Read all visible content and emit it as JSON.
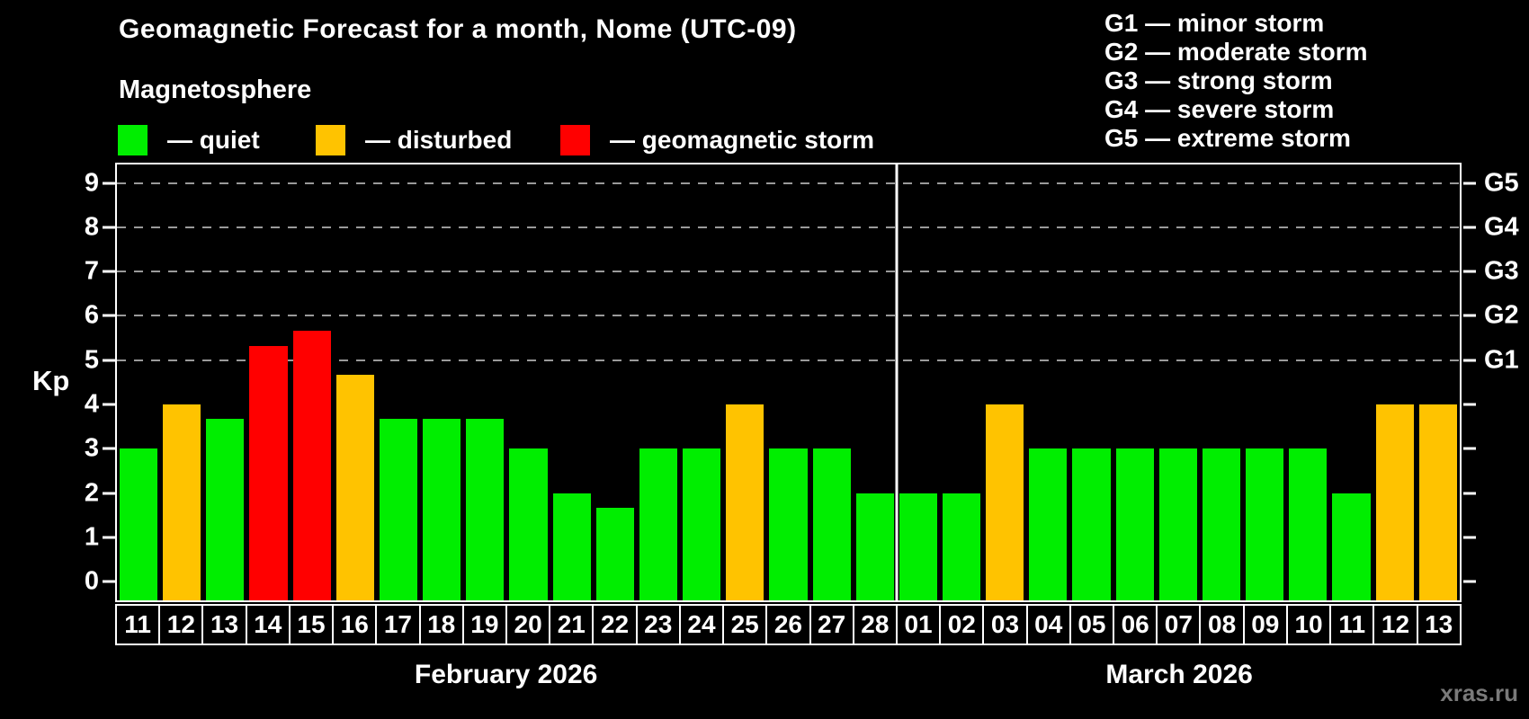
{
  "header": {
    "title": "Geomagnetic Forecast for a month, Nome (UTC-09)",
    "subtitle": "Magnetosphere"
  },
  "legend": {
    "items": [
      {
        "label": "— quiet",
        "status": "quiet"
      },
      {
        "label": "— disturbed",
        "status": "disturbed"
      },
      {
        "label": "— geomagnetic storm",
        "status": "storm"
      }
    ]
  },
  "g_scale_legend": [
    "G1 — minor storm",
    "G2 — moderate storm",
    "G3 — strong storm",
    "G4 — severe storm",
    "G5 — extreme storm"
  ],
  "watermark": "xras.ru",
  "chart_data": {
    "type": "bar",
    "title": "Geomagnetic Forecast for a month, Nome (UTC-09)",
    "ylabel": "Kp",
    "ylim": [
      0,
      9
    ],
    "plot_range": {
      "min": -0.425,
      "max": 9.42
    },
    "yticks": [
      0,
      1,
      2,
      3,
      4,
      5,
      6,
      7,
      8,
      9
    ],
    "grid_levels": [
      5,
      6,
      7,
      8,
      9
    ],
    "grid": "dashed horizontal at storm levels only",
    "right_axis_labels": [
      {
        "label": "G1",
        "kp": 5
      },
      {
        "label": "G2",
        "kp": 6
      },
      {
        "label": "G3",
        "kp": 7
      },
      {
        "label": "G4",
        "kp": 8
      },
      {
        "label": "G5",
        "kp": 9
      }
    ],
    "colors": {
      "quiet": "#00ee00",
      "disturbed": "#ffc300",
      "storm": "#ff0000",
      "gridline": "#9a9a9a",
      "frame": "#ffffff",
      "background": "#000000"
    },
    "months": [
      {
        "label": "February 2026",
        "days": 18
      },
      {
        "label": "March 2026",
        "days": 13
      }
    ],
    "bars": [
      {
        "day": "11",
        "kp": 3.0,
        "status": "quiet"
      },
      {
        "day": "12",
        "kp": 4.0,
        "status": "disturbed"
      },
      {
        "day": "13",
        "kp": 3.67,
        "status": "quiet"
      },
      {
        "day": "14",
        "kp": 5.33,
        "status": "storm"
      },
      {
        "day": "15",
        "kp": 5.67,
        "status": "storm"
      },
      {
        "day": "16",
        "kp": 4.67,
        "status": "disturbed"
      },
      {
        "day": "17",
        "kp": 3.67,
        "status": "quiet"
      },
      {
        "day": "18",
        "kp": 3.67,
        "status": "quiet"
      },
      {
        "day": "19",
        "kp": 3.67,
        "status": "quiet"
      },
      {
        "day": "20",
        "kp": 3.0,
        "status": "quiet"
      },
      {
        "day": "21",
        "kp": 2.0,
        "status": "quiet"
      },
      {
        "day": "22",
        "kp": 1.67,
        "status": "quiet"
      },
      {
        "day": "23",
        "kp": 3.0,
        "status": "quiet"
      },
      {
        "day": "24",
        "kp": 3.0,
        "status": "quiet"
      },
      {
        "day": "25",
        "kp": 4.0,
        "status": "disturbed"
      },
      {
        "day": "26",
        "kp": 3.0,
        "status": "quiet"
      },
      {
        "day": "27",
        "kp": 3.0,
        "status": "quiet"
      },
      {
        "day": "28",
        "kp": 2.0,
        "status": "quiet"
      },
      {
        "day": "01",
        "kp": 2.0,
        "status": "quiet"
      },
      {
        "day": "02",
        "kp": 2.0,
        "status": "quiet"
      },
      {
        "day": "03",
        "kp": 4.0,
        "status": "disturbed"
      },
      {
        "day": "04",
        "kp": 3.0,
        "status": "quiet"
      },
      {
        "day": "05",
        "kp": 3.0,
        "status": "quiet"
      },
      {
        "day": "06",
        "kp": 3.0,
        "status": "quiet"
      },
      {
        "day": "07",
        "kp": 3.0,
        "status": "quiet"
      },
      {
        "day": "08",
        "kp": 3.0,
        "status": "quiet"
      },
      {
        "day": "09",
        "kp": 3.0,
        "status": "quiet"
      },
      {
        "day": "10",
        "kp": 3.0,
        "status": "quiet"
      },
      {
        "day": "11",
        "kp": 2.0,
        "status": "quiet"
      },
      {
        "day": "12",
        "kp": 4.0,
        "status": "disturbed"
      },
      {
        "day": "13",
        "kp": 4.0,
        "status": "disturbed"
      }
    ]
  }
}
